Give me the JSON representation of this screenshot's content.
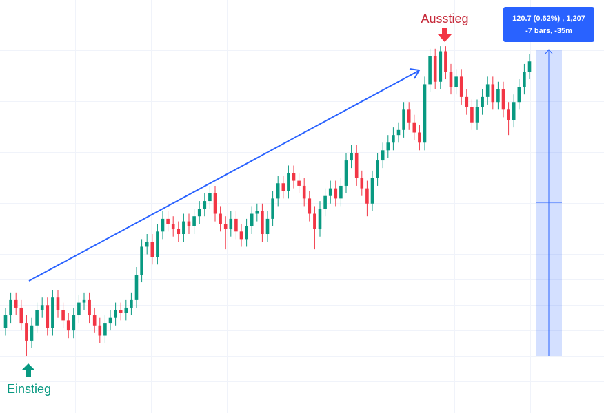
{
  "chart_data": {
    "type": "candlestick",
    "up_color": "#089981",
    "down_color": "#f23645",
    "ylim": [
      19445.5,
      19608.2
    ],
    "annotations": {
      "entry": "Einstieg",
      "exit": "Ausstieg",
      "measure": [
        "120.7 (0.62%) , 1,207",
        "-7 bars, -35m"
      ]
    },
    "open": [
      19479,
      19484,
      19490,
      19487,
      19481,
      19474,
      19480,
      19486,
      19488,
      19479,
      19491,
      19486,
      19482,
      19478,
      19484,
      19489,
      19490,
      19484,
      19480,
      19476,
      19481,
      19483,
      19486,
      19485,
      19487,
      19490,
      19500,
      19511,
      19513,
      19507,
      19517,
      19522,
      19520,
      19518,
      19516,
      19521,
      19519,
      19523,
      19526,
      19529,
      19532,
      19524,
      19520,
      19518,
      19522,
      19517,
      19514,
      19519,
      19524,
      19525,
      19516,
      19522,
      19530,
      19536,
      19533,
      19540,
      19537,
      19535,
      19530,
      19524,
      19518,
      19526,
      19531,
      19534,
      19530,
      19535,
      19545,
      19548,
      19538,
      19534,
      19528,
      19538,
      19545,
      19549,
      19552,
      19555,
      19557,
      19565,
      19560,
      19556,
      19552,
      19575,
      19586,
      19576,
      19588,
      19580,
      19574,
      19578,
      19570,
      19566,
      19560,
      19566,
      19570,
      19575,
      19568,
      19573,
      19565,
      19561,
      19568,
      19574,
      19580
    ],
    "high": [
      19487,
      19493,
      19493,
      19490,
      19484,
      19483,
      19489,
      19491,
      19491,
      19494,
      19494,
      19489,
      19485,
      19487,
      19492,
      19493,
      19493,
      19487,
      19483,
      19484,
      19486,
      19489,
      19489,
      19490,
      19493,
      19503,
      19514,
      19516,
      19516,
      19520,
      19525,
      19525,
      19523,
      19521,
      19524,
      19524,
      19526,
      19529,
      19532,
      19535,
      19535,
      19527,
      19523,
      19525,
      19525,
      19520,
      19522,
      19527,
      19528,
      19528,
      19525,
      19533,
      19539,
      19539,
      19543,
      19543,
      19540,
      19538,
      19533,
      19527,
      19529,
      19534,
      19537,
      19537,
      19538,
      19548,
      19551,
      19551,
      19541,
      19537,
      19541,
      19548,
      19552,
      19555,
      19558,
      19560,
      19568,
      19568,
      19563,
      19559,
      19578,
      19589,
      19589,
      19590,
      19590,
      19583,
      19581,
      19581,
      19573,
      19569,
      19569,
      19573,
      19578,
      19578,
      19576,
      19576,
      19568,
      19571,
      19577,
      19583,
      19587
    ],
    "low": [
      19476,
      19481,
      19484,
      19478,
      19468,
      19471,
      19477,
      19483,
      19476,
      19476,
      19483,
      19479,
      19475,
      19475,
      19481,
      19486,
      19481,
      19477,
      19473,
      19473,
      19478,
      19480,
      19482,
      19482,
      19484,
      19487,
      19497,
      19508,
      19504,
      19504,
      19514,
      19517,
      19515,
      19513,
      19513,
      19516,
      19516,
      19520,
      19523,
      19526,
      19521,
      19517,
      19510,
      19515,
      19514,
      19511,
      19511,
      19516,
      19521,
      19513,
      19513,
      19519,
      19527,
      19530,
      19530,
      19534,
      19532,
      19527,
      19521,
      19510,
      19515,
      19523,
      19528,
      19527,
      19527,
      19532,
      19542,
      19535,
      19531,
      19523,
      19525,
      19535,
      19542,
      19546,
      19549,
      19552,
      19554,
      19557,
      19553,
      19549,
      19549,
      19572,
      19573,
      19573,
      19577,
      19571,
      19571,
      19567,
      19563,
      19557,
      19557,
      19563,
      19567,
      19565,
      19565,
      19562,
      19555,
      19558,
      19565,
      19571,
      19577
    ],
    "close": [
      19484,
      19490,
      19487,
      19481,
      19474,
      19480,
      19486,
      19488,
      19479,
      19491,
      19486,
      19482,
      19478,
      19484,
      19489,
      19490,
      19484,
      19480,
      19476,
      19481,
      19483,
      19486,
      19485,
      19487,
      19490,
      19500,
      19511,
      19513,
      19507,
      19517,
      19522,
      19520,
      19518,
      19516,
      19521,
      19519,
      19523,
      19526,
      19529,
      19532,
      19524,
      19520,
      19518,
      19522,
      19517,
      19514,
      19519,
      19524,
      19525,
      19516,
      19522,
      19530,
      19536,
      19533,
      19540,
      19537,
      19535,
      19530,
      19524,
      19518,
      19526,
      19531,
      19534,
      19530,
      19535,
      19545,
      19548,
      19538,
      19534,
      19528,
      19538,
      19545,
      19549,
      19552,
      19555,
      19557,
      19565,
      19560,
      19556,
      19552,
      19575,
      19586,
      19576,
      19588,
      19580,
      19574,
      19578,
      19570,
      19566,
      19560,
      19566,
      19570,
      19575,
      19568,
      19573,
      19565,
      19561,
      19568,
      19574,
      19580,
      19584
    ]
  }
}
